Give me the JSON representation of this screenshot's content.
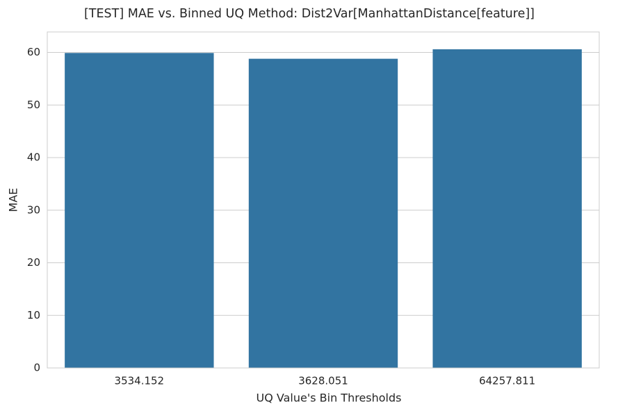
{
  "chart_data": {
    "type": "bar",
    "title": "[TEST] MAE vs. Binned UQ Method: Dist2Var[ManhattanDistance[feature]]",
    "x_label": "UQ Value's Bin Thresholds",
    "y_label": "MAE",
    "categories": [
      "3534.152",
      "3628.051",
      "64257.811"
    ],
    "values": [
      59.9,
      58.8,
      60.6
    ],
    "color": "#3274a1",
    "ylim": [
      0,
      63.9
    ],
    "yticks": [
      0,
      10,
      20,
      30,
      40,
      50,
      60
    ],
    "grid": true
  }
}
